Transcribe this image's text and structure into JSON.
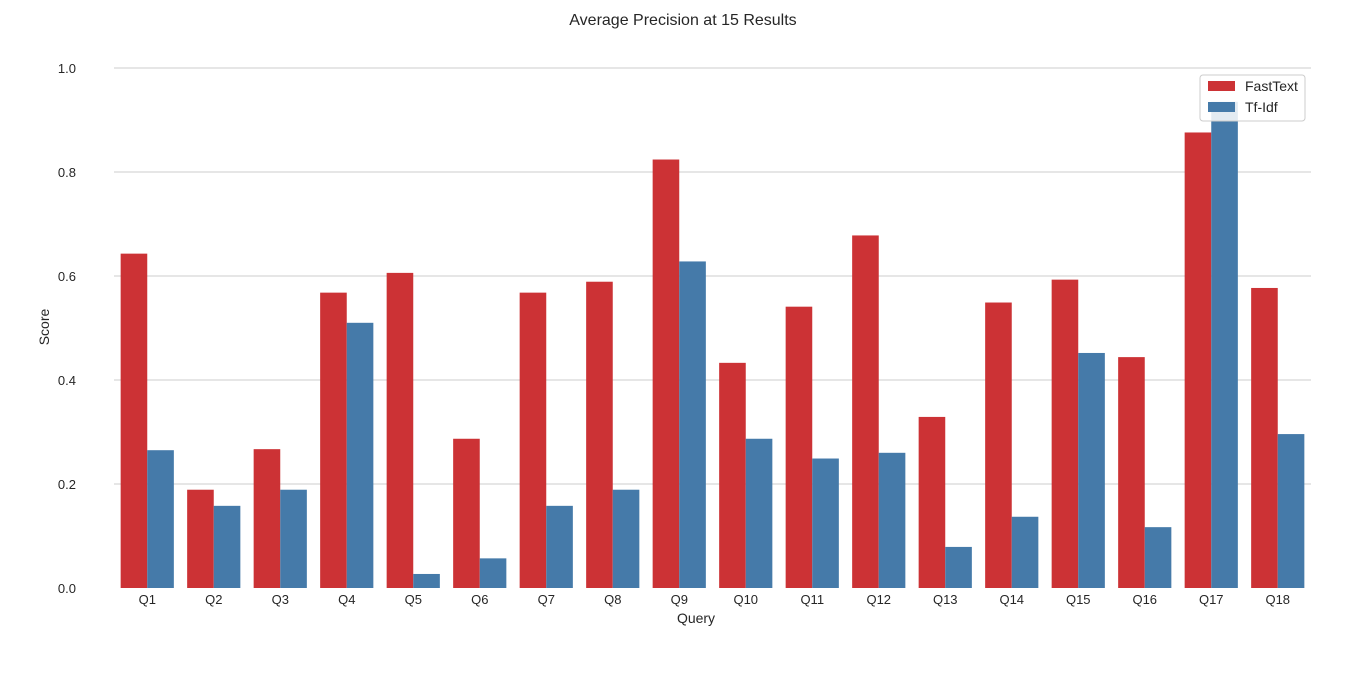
{
  "chart_data": {
    "type": "bar",
    "title": "Average Precision at 15 Results",
    "xlabel": "Query",
    "ylabel": "Score",
    "ylim": [
      0,
      1.0
    ],
    "yticks": [
      0.0,
      0.2,
      0.4,
      0.6,
      0.8,
      1.0
    ],
    "ytick_labels": [
      "0.0",
      "0.2",
      "0.4",
      "0.6",
      "0.8",
      "1.0"
    ],
    "grid": "horizontal",
    "legend_position": "top-right",
    "categories": [
      "Q1",
      "Q2",
      "Q3",
      "Q4",
      "Q5",
      "Q6",
      "Q7",
      "Q8",
      "Q9",
      "Q10",
      "Q11",
      "Q12",
      "Q13",
      "Q14",
      "Q15",
      "Q16",
      "Q17",
      "Q18"
    ],
    "series": [
      {
        "name": "FastText",
        "color": "#cc3235",
        "values": [
          0.643,
          0.189,
          0.267,
          0.568,
          0.606,
          0.287,
          0.568,
          0.589,
          0.824,
          0.433,
          0.541,
          0.678,
          0.329,
          0.549,
          0.593,
          0.444,
          0.876,
          0.577
        ]
      },
      {
        "name": "Tf-Idf",
        "color": "#457aa9",
        "values": [
          0.265,
          0.158,
          0.189,
          0.51,
          0.027,
          0.057,
          0.158,
          0.189,
          0.628,
          0.287,
          0.249,
          0.26,
          0.079,
          0.137,
          0.452,
          0.117,
          0.935,
          0.296
        ]
      }
    ]
  }
}
